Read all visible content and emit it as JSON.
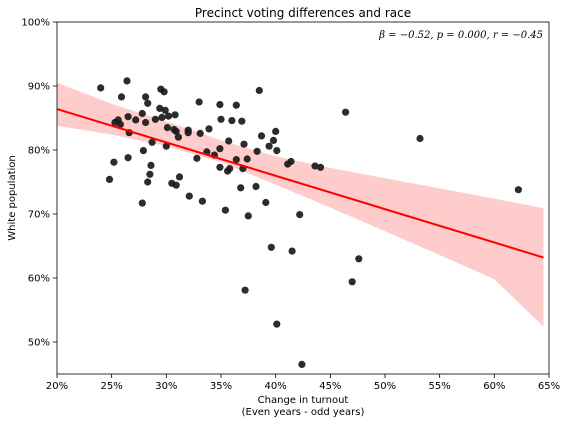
{
  "chart_data": {
    "type": "scatter",
    "title": "Precinct voting differences and race",
    "xlabel": "Change in turnout",
    "xlabel_sub": "(Even years - odd years)",
    "ylabel": "White population",
    "xlim": [
      0.2,
      0.65
    ],
    "ylim": [
      0.45,
      1.0
    ],
    "x_ticks": [
      0.2,
      0.25,
      0.3,
      0.35,
      0.4,
      0.45,
      0.5,
      0.55,
      0.6,
      0.65
    ],
    "x_tick_labels": [
      "20%",
      "25%",
      "30%",
      "35%",
      "40%",
      "45%",
      "50%",
      "55%",
      "60%",
      "65%"
    ],
    "y_ticks": [
      0.5,
      0.6,
      0.7,
      0.8,
      0.9,
      1.0
    ],
    "y_tick_labels": [
      "50%",
      "60%",
      "70%",
      "80%",
      "90%",
      "100%"
    ],
    "annotation": "β = −0.52, p = 0.000, r = −0.45",
    "grid": false,
    "point_color": "#1a1a1a",
    "line_color": "#ff0000",
    "band_color": "#ffcccc",
    "regression": {
      "x_start": 0.2,
      "y_start": 0.864,
      "x_end": 0.645,
      "y_end": 0.632
    },
    "confidence_band": {
      "x": [
        0.2,
        0.25,
        0.3,
        0.35,
        0.4,
        0.45,
        0.5,
        0.55,
        0.6,
        0.645
      ],
      "upper": [
        0.905,
        0.872,
        0.845,
        0.815,
        0.79,
        0.772,
        0.756,
        0.74,
        0.724,
        0.709
      ],
      "lower": [
        0.838,
        0.824,
        0.806,
        0.781,
        0.746,
        0.71,
        0.673,
        0.636,
        0.598,
        0.524
      ]
    },
    "points": [
      {
        "x": 0.24,
        "y": 0.897
      },
      {
        "x": 0.264,
        "y": 0.908
      },
      {
        "x": 0.259,
        "y": 0.883
      },
      {
        "x": 0.281,
        "y": 0.883
      },
      {
        "x": 0.295,
        "y": 0.895
      },
      {
        "x": 0.298,
        "y": 0.891
      },
      {
        "x": 0.283,
        "y": 0.873
      },
      {
        "x": 0.294,
        "y": 0.865
      },
      {
        "x": 0.299,
        "y": 0.862
      },
      {
        "x": 0.308,
        "y": 0.855
      },
      {
        "x": 0.302,
        "y": 0.853
      },
      {
        "x": 0.296,
        "y": 0.851
      },
      {
        "x": 0.29,
        "y": 0.848
      },
      {
        "x": 0.278,
        "y": 0.857
      },
      {
        "x": 0.272,
        "y": 0.847
      },
      {
        "x": 0.265,
        "y": 0.852
      },
      {
        "x": 0.256,
        "y": 0.847
      },
      {
        "x": 0.253,
        "y": 0.843
      },
      {
        "x": 0.258,
        "y": 0.84
      },
      {
        "x": 0.281,
        "y": 0.843
      },
      {
        "x": 0.301,
        "y": 0.835
      },
      {
        "x": 0.307,
        "y": 0.832
      },
      {
        "x": 0.309,
        "y": 0.829
      },
      {
        "x": 0.32,
        "y": 0.831
      },
      {
        "x": 0.33,
        "y": 0.875
      },
      {
        "x": 0.349,
        "y": 0.871
      },
      {
        "x": 0.331,
        "y": 0.826
      },
      {
        "x": 0.32,
        "y": 0.827
      },
      {
        "x": 0.339,
        "y": 0.833
      },
      {
        "x": 0.35,
        "y": 0.848
      },
      {
        "x": 0.36,
        "y": 0.846
      },
      {
        "x": 0.364,
        "y": 0.87
      },
      {
        "x": 0.369,
        "y": 0.845
      },
      {
        "x": 0.385,
        "y": 0.893
      },
      {
        "x": 0.464,
        "y": 0.859
      },
      {
        "x": 0.532,
        "y": 0.818
      },
      {
        "x": 0.266,
        "y": 0.827
      },
      {
        "x": 0.287,
        "y": 0.812
      },
      {
        "x": 0.279,
        "y": 0.799
      },
      {
        "x": 0.3,
        "y": 0.806
      },
      {
        "x": 0.252,
        "y": 0.781
      },
      {
        "x": 0.265,
        "y": 0.788
      },
      {
        "x": 0.286,
        "y": 0.776
      },
      {
        "x": 0.285,
        "y": 0.762
      },
      {
        "x": 0.311,
        "y": 0.82
      },
      {
        "x": 0.328,
        "y": 0.787
      },
      {
        "x": 0.337,
        "y": 0.797
      },
      {
        "x": 0.344,
        "y": 0.792
      },
      {
        "x": 0.349,
        "y": 0.802
      },
      {
        "x": 0.357,
        "y": 0.814
      },
      {
        "x": 0.364,
        "y": 0.785
      },
      {
        "x": 0.371,
        "y": 0.809
      },
      {
        "x": 0.374,
        "y": 0.786
      },
      {
        "x": 0.383,
        "y": 0.798
      },
      {
        "x": 0.387,
        "y": 0.822
      },
      {
        "x": 0.394,
        "y": 0.806
      },
      {
        "x": 0.398,
        "y": 0.815
      },
      {
        "x": 0.4,
        "y": 0.829
      },
      {
        "x": 0.401,
        "y": 0.799
      },
      {
        "x": 0.411,
        "y": 0.778
      },
      {
        "x": 0.414,
        "y": 0.782
      },
      {
        "x": 0.349,
        "y": 0.773
      },
      {
        "x": 0.356,
        "y": 0.767
      },
      {
        "x": 0.358,
        "y": 0.771
      },
      {
        "x": 0.37,
        "y": 0.771
      },
      {
        "x": 0.382,
        "y": 0.743
      },
      {
        "x": 0.436,
        "y": 0.775
      },
      {
        "x": 0.441,
        "y": 0.773
      },
      {
        "x": 0.248,
        "y": 0.754
      },
      {
        "x": 0.283,
        "y": 0.75
      },
      {
        "x": 0.305,
        "y": 0.748
      },
      {
        "x": 0.309,
        "y": 0.745
      },
      {
        "x": 0.312,
        "y": 0.758
      },
      {
        "x": 0.321,
        "y": 0.728
      },
      {
        "x": 0.333,
        "y": 0.72
      },
      {
        "x": 0.368,
        "y": 0.741
      },
      {
        "x": 0.278,
        "y": 0.717
      },
      {
        "x": 0.354,
        "y": 0.706
      },
      {
        "x": 0.375,
        "y": 0.697
      },
      {
        "x": 0.391,
        "y": 0.718
      },
      {
        "x": 0.422,
        "y": 0.699
      },
      {
        "x": 0.396,
        "y": 0.648
      },
      {
        "x": 0.415,
        "y": 0.642
      },
      {
        "x": 0.476,
        "y": 0.63
      },
      {
        "x": 0.47,
        "y": 0.594
      },
      {
        "x": 0.372,
        "y": 0.581
      },
      {
        "x": 0.401,
        "y": 0.528
      },
      {
        "x": 0.424,
        "y": 0.465
      },
      {
        "x": 0.622,
        "y": 0.738
      }
    ]
  }
}
